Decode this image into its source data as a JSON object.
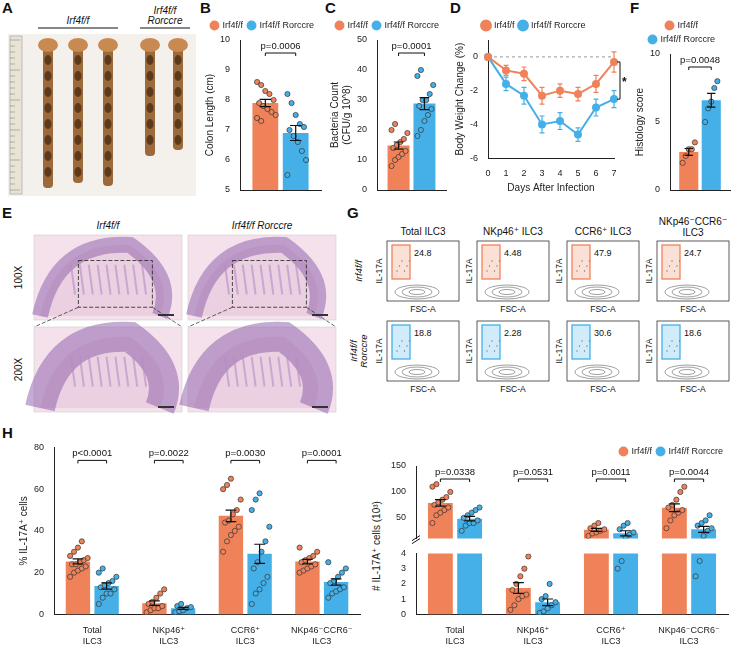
{
  "chart_data": [
    {
      "letter": "B",
      "type": "bar",
      "categories": [
        null
      ],
      "series": [
        {
          "name": "Irf4f/f",
          "color": "#f0825a",
          "values": [
            7.9
          ],
          "errors": [
            0.12
          ],
          "points": [
            [
              8.6,
              8.5,
              8.3,
              8.2,
              8.0,
              7.9,
              7.8,
              7.7,
              7.6,
              7.5,
              7.4,
              7.3
            ]
          ]
        },
        {
          "name": "Irf4f/f Rorccre",
          "color": "#45b0e8",
          "values": [
            6.9
          ],
          "errors": [
            0.25
          ],
          "points": [
            [
              8.2,
              7.9,
              7.5,
              7.2,
              7.1,
              7.0,
              6.8,
              6.6,
              6.3,
              6.0,
              5.5
            ]
          ]
        }
      ],
      "y_label": "Colon Length (cm)",
      "ylim": [
        5,
        10
      ],
      "yticks": [
        5,
        6,
        7,
        8,
        9,
        10
      ],
      "annotations": [
        "p=0.0006"
      ],
      "legend": "top",
      "grid": false,
      "tick_labels": "y"
    },
    {
      "letter": "C",
      "type": "bar",
      "categories": [
        null
      ],
      "series": [
        {
          "name": "Irf4f/f",
          "color": "#f0825a",
          "values": [
            14.8
          ],
          "errors": [
            1.2
          ],
          "points": [
            [
              8,
              10,
              11,
              12,
              13,
              14,
              15,
              16,
              17,
              19,
              20,
              22
            ]
          ]
        },
        {
          "name": "Irf4f/f Rorccre",
          "color": "#45b0e8",
          "values": [
            28.8
          ],
          "errors": [
            2.0
          ],
          "points": [
            [
              18,
              20,
              23,
              25,
              27,
              28,
              30,
              30,
              32,
              35,
              38,
              40
            ]
          ]
        }
      ],
      "y_label": [
        "Bacteria Count",
        "(CFU/g 10^8)"
      ],
      "ylim": [
        0,
        50
      ],
      "yticks": [
        0,
        10,
        20,
        30,
        40,
        50
      ],
      "annotations": [
        "p=0.0001"
      ],
      "legend": "top",
      "grid": false,
      "tick_labels": "y"
    },
    {
      "letter": "D",
      "type": "line",
      "x": [
        0,
        1,
        2,
        3,
        4,
        5,
        6,
        7
      ],
      "series": [
        {
          "name": "Irf4f/f",
          "color": "#f0825a",
          "values": [
            0,
            -0.8,
            -1.0,
            -2.3,
            -2.0,
            -2.2,
            -1.6,
            -0.3
          ],
          "errors": [
            0,
            0.3,
            0.4,
            0.5,
            0.4,
            0.4,
            0.5,
            0.6
          ]
        },
        {
          "name": "Irf4f/f Rorccre",
          "color": "#45b0e8",
          "values": [
            0,
            -1.6,
            -2.3,
            -4.0,
            -3.8,
            -4.6,
            -3.0,
            -2.5
          ],
          "errors": [
            0,
            0.4,
            0.5,
            0.5,
            0.5,
            0.4,
            0.5,
            0.5
          ]
        }
      ],
      "x_label": "Days After Infection",
      "y_label": "Body Weight Change (%)",
      "xlim": [
        0,
        7
      ],
      "xticks": [
        0,
        1,
        2,
        3,
        4,
        5,
        6,
        7
      ],
      "ylim": [
        -6,
        1
      ],
      "yticks": [
        -6,
        -4,
        -2,
        0
      ],
      "hline": 0,
      "annotations": [
        "*"
      ],
      "marker": "circle",
      "legend": "top",
      "grid": false
    },
    {
      "letter": "F",
      "type": "bar",
      "categories": [
        null
      ],
      "series": [
        {
          "name": "Irf4f/f",
          "color": "#f0825a",
          "values": [
            2.8
          ],
          "errors": [
            0.25
          ],
          "points": [
            [
              2,
              2.5,
              3,
              3,
              3.5
            ]
          ]
        },
        {
          "name": "Irf4f/f Rorccre",
          "color": "#45b0e8",
          "values": [
            6.6
          ],
          "errors": [
            0.5
          ],
          "points": [
            [
              5,
              6,
              6.5,
              7.5,
              8
            ]
          ]
        }
      ],
      "y_label": "Histology score",
      "ylim": [
        0,
        10
      ],
      "yticks": [
        0,
        5,
        10
      ],
      "annotations": [
        "p=0.0048"
      ],
      "legend": "top",
      "grid": false,
      "tick_labels": "y"
    },
    {
      "letter": "H",
      "type": "bar",
      "categories": [
        "Total ILC3",
        "NKp46⁺ ILC3",
        "CCR6⁺ ILC3",
        "NKp46⁻CCR6⁻ ILC3"
      ],
      "series": [
        {
          "name": "Irf4f/f",
          "color": "#f0825a",
          "values": [
            25.4,
            5.4,
            47.2,
            25.3
          ],
          "errors": [
            1.2,
            1.1,
            2.8,
            1.1
          ],
          "points": [
            [
              18,
              20,
              21,
              22,
              23,
              24,
              24,
              25,
              26,
              27,
              28,
              30,
              32,
              35
            ],
            [
              1,
              2,
              3,
              3,
              4,
              5,
              6,
              8,
              10,
              12
            ],
            [
              30,
              35,
              38,
              40,
              42,
              44,
              45,
              48,
              50,
              55,
              60,
              62,
              65
            ],
            [
              20,
              21,
              22,
              23,
              24,
              25,
              26,
              27,
              28,
              30,
              32
            ]
          ]
        },
        {
          "name": "Irf4f/f Rorccre",
          "color": "#45b0e8",
          "values": [
            13.6,
            2.9,
            29.0,
            15.5
          ],
          "errors": [
            1.5,
            0.5,
            4.6,
            1.5
          ],
          "points": [
            [
              5,
              8,
              10,
              10,
              12,
              13,
              14,
              15,
              16,
              18,
              20,
              22
            ],
            [
              1,
              1.5,
              2,
              3,
              3.5,
              4,
              5
            ],
            [
              5,
              10,
              12,
              15,
              18,
              22,
              25,
              30,
              35,
              42,
              50,
              55,
              58
            ],
            [
              8,
              10,
              11,
              12,
              13,
              15,
              16,
              18,
              20,
              22,
              25
            ]
          ]
        }
      ],
      "y_label": "% IL-17A⁺ cells",
      "ylim": [
        0,
        80
      ],
      "yticks": [
        0,
        20,
        40,
        60,
        80
      ],
      "annotations": [
        "p<0.0001",
        "p=0.0022",
        "p=0.0030",
        "p=0.0001"
      ],
      "grid": false
    },
    {
      "type": "bar",
      "categories": [
        "Total ILC3",
        "NKp46⁺ ILC3",
        "CCR6⁺ ILC3",
        "NKp46⁻CCR6⁻ ILC3"
      ],
      "series": [
        {
          "name": "Irf4f/f",
          "color": "#f0825a",
          "values": [
            78.8,
            1.73,
            26.9,
            69.5
          ],
          "errors": [
            6.3,
            0.35,
            2.9,
            7.4
          ],
          "points": [
            [
              40,
              55,
              60,
              65,
              70,
              75,
              80,
              85,
              90,
              100,
              110,
              115
            ],
            [
              0.3,
              0.6,
              1.0,
              1.2,
              1.3,
              1.6,
              2.0,
              2.5,
              3.0,
              3.8
            ],
            [
              15,
              20,
              22,
              25,
              28,
              30,
              35,
              40
            ],
            [
              30,
              45,
              55,
              60,
              65,
              70,
              75,
              85,
              100,
              110
            ]
          ]
        },
        {
          "name": "Irf4f/f Rorccre",
          "color": "#45b0e8",
          "values": [
            48.5,
            0.79,
            20.2,
            27.9
          ],
          "errors": [
            4.5,
            0.22,
            4.9,
            5.8
          ],
          "points": [
            [
              25,
              35,
              40,
              40,
              45,
              50,
              55,
              60,
              65,
              70
            ],
            [
              0.1,
              0.2,
              0.4,
              0.6,
              0.8,
              1.0,
              1.2,
              2.0
            ],
            [
              3.0,
              3.5,
              12,
              18,
              22,
              28,
              35,
              40
            ],
            [
              2.5,
              3.5,
              15,
              25,
              30,
              35,
              40,
              45,
              55
            ]
          ]
        }
      ],
      "y_label": "# IL-17A⁺ cells (10³)",
      "y_segments": [
        {
          "ylim": [
            0,
            4
          ],
          "yticks": [
            0,
            1,
            2,
            3,
            4
          ]
        },
        {
          "ylim": [
            10,
            150
          ],
          "yticks": [
            50,
            100,
            150
          ]
        }
      ],
      "annotations": [
        "p=0.0338",
        "p=0.0531",
        "p=0.0011",
        "p=0.0044"
      ],
      "legend": "top",
      "grid": false
    }
  ],
  "image_panels": {
    "A": {
      "letter": "A",
      "labels": [
        "Irf4f/f",
        "Irf4f/f Rorccre"
      ]
    },
    "E": {
      "letter": "E",
      "columns": [
        "Irf4f/f",
        "Irf4f/f Rorccre"
      ],
      "rows": [
        "100X",
        "200X"
      ]
    },
    "G": {
      "letter": "G",
      "columns": [
        "Total ILC3",
        "NKp46⁺ ILC3",
        "CCR6⁺ ILC3",
        "NKp46⁻CCR6⁻ ILC3"
      ],
      "rows": [
        {
          "label": "Irf4f/f",
          "color": "#f0825a",
          "values": [
            24.8,
            4.48,
            47.9,
            24.7
          ]
        },
        {
          "label": "Irf4f/f Rorccre",
          "color": "#45b0e8",
          "values": [
            18.8,
            2.28,
            30.6,
            18.6
          ]
        }
      ],
      "y_label": "IL-17A",
      "x_label": "FSC-A"
    }
  }
}
